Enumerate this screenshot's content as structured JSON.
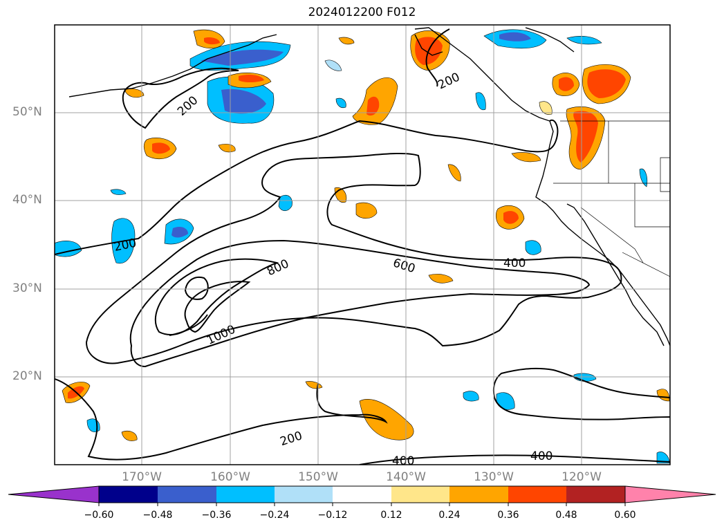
{
  "title": "2024012200 F012",
  "axes": {
    "lat_labels": [
      "50°N",
      "40°N",
      "30°N",
      "20°N"
    ],
    "lon_labels": [
      "170°W",
      "160°W",
      "150°W",
      "140°W",
      "130°W",
      "120°W"
    ]
  },
  "contour_labels": [
    "200",
    "200",
    "200",
    "200",
    "400",
    "400",
    "400",
    "600",
    "800",
    "1000"
  ],
  "colorbar": {
    "tick_labels": [
      "−0.60",
      "−0.48",
      "−0.36",
      "−0.24",
      "−0.12",
      "0.12",
      "0.24",
      "0.36",
      "0.48",
      "0.60"
    ],
    "colors": [
      "#9932cc",
      "#00008b",
      "#3a5fcd",
      "#00bfff",
      "#b0e0f8",
      "#ffffff",
      "#ffe68a",
      "#ffa500",
      "#ff4500",
      "#b22222",
      "#ff82ab"
    ]
  }
}
